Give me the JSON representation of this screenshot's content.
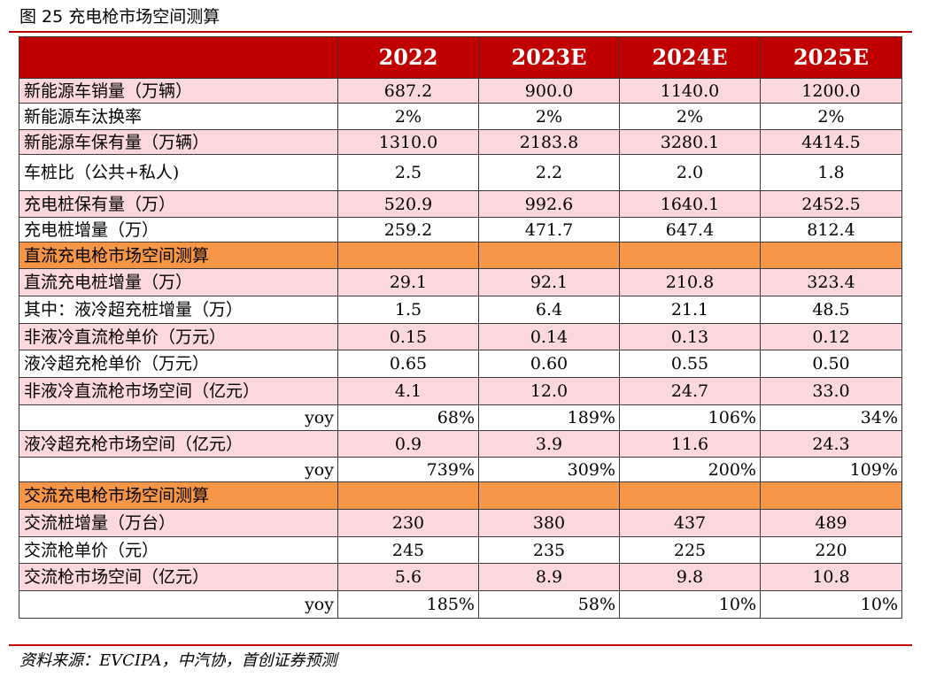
{
  "title": "图 25 充电枪市场空间测算",
  "header": [
    "",
    "2022",
    "2023E",
    "2024E",
    "2025E"
  ],
  "rows": [
    {
      "type": "pink",
      "label": "新能源车销量（万辆）",
      "cells": [
        "687.2",
        "900.0",
        "1140.0",
        "1200.0"
      ]
    },
    {
      "type": "white",
      "label": "新能源车汰换率",
      "cells": [
        "2%",
        "2%",
        "2%",
        "2%"
      ]
    },
    {
      "type": "pink",
      "label": "新能源车保有量（万辆）",
      "cells": [
        "1310.0",
        "2183.8",
        "3280.1",
        "4414.5"
      ]
    },
    {
      "type": "white",
      "label": "车桩比（公共+私人)",
      "cells": [
        "2.5",
        "2.2",
        "2.0",
        "1.8"
      ]
    },
    {
      "type": "pink",
      "label": "充电桩保有量（万）",
      "cells": [
        "520.9",
        "992.6",
        "1640.1",
        "2452.5"
      ]
    },
    {
      "type": "white",
      "label": "充电桩增量（万）",
      "cells": [
        "259.2",
        "471.7",
        "647.4",
        "812.4"
      ]
    },
    {
      "type": "orange",
      "label": "直流充电枪市场空间测算",
      "cells": [
        "",
        "",
        "",
        ""
      ]
    },
    {
      "type": "pink",
      "label": "直流充电桩增量（万）",
      "cells": [
        "29.1",
        "92.1",
        "210.8",
        "323.4"
      ]
    },
    {
      "type": "white",
      "label": "其中：液冷超充桩增量（万）",
      "cells": [
        "1.5",
        "6.4",
        "21.1",
        "48.5"
      ]
    },
    {
      "type": "pink",
      "label": "非液冷直流枪单价（万元）",
      "cells": [
        "0.15",
        "0.14",
        "0.13",
        "0.12"
      ]
    },
    {
      "type": "white",
      "label": "液冷超充枪单价（万元）",
      "cells": [
        "0.65",
        "0.60",
        "0.55",
        "0.50"
      ]
    },
    {
      "type": "pink",
      "label": "非液冷直流枪市场空间（亿元）",
      "cells": [
        "4.1",
        "12.0",
        "24.7",
        "33.0"
      ]
    },
    {
      "type": "yoy",
      "label": "yoy",
      "cells": [
        "68%",
        "189%",
        "106%",
        "34%"
      ]
    },
    {
      "type": "pink",
      "label": "液冷超充枪市场空间（亿元）",
      "cells": [
        "0.9",
        "3.9",
        "11.6",
        "24.3"
      ]
    },
    {
      "type": "yoy",
      "label": "yoy",
      "cells": [
        "739%",
        "309%",
        "200%",
        "109%"
      ]
    },
    {
      "type": "orange",
      "label": "交流充电枪市场空间测算",
      "cells": [
        "",
        "",
        "",
        ""
      ]
    },
    {
      "type": "pink",
      "label": "交流桩增量（万台）",
      "cells": [
        "230",
        "380",
        "437",
        "489"
      ]
    },
    {
      "type": "white",
      "label": "交流枪单价（元）",
      "cells": [
        "245",
        "235",
        "225",
        "220"
      ]
    },
    {
      "type": "pink",
      "label": "交流枪市场空间（亿元）",
      "cells": [
        "5.6",
        "8.9",
        "9.8",
        "10.8"
      ]
    },
    {
      "type": "yoy",
      "label": "yoy",
      "cells": [
        "185%",
        "58%",
        "10%",
        "10%"
      ]
    }
  ],
  "source": "资料来源：EVCIPA，中汽协，首创证券预测",
  "colors": {
    "header_bg": "#c00000",
    "pink_row": "#fbd8dc",
    "section_row": "#f79646",
    "rule": "#c00000"
  }
}
